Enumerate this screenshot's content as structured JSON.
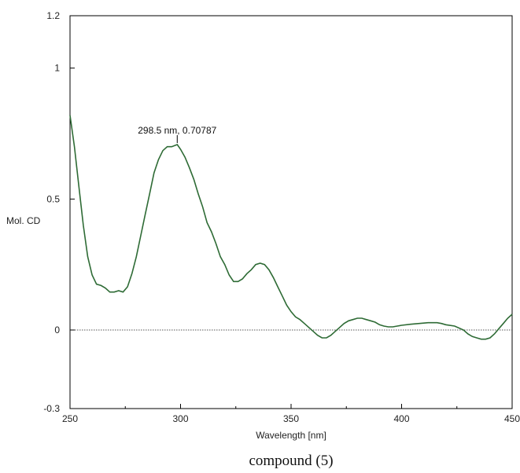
{
  "chart_data": {
    "type": "line",
    "xlabel": "Wavelength [nm]",
    "ylabel": "Mol. CD",
    "caption": "compound (5)",
    "xlim": [
      250,
      450
    ],
    "ylim": [
      -0.3,
      1.2
    ],
    "x_ticks": [
      250,
      300,
      350,
      400,
      450
    ],
    "x_tick_labels": [
      "250",
      "300",
      "350",
      "400",
      "450"
    ],
    "y_ticks": [
      -0.3,
      0,
      0.5,
      1,
      1.2
    ],
    "y_tick_labels": [
      "-0.3",
      "0",
      "0.5",
      "1",
      "1.2"
    ],
    "zero_line": true,
    "grid": false,
    "line_color": "#2e6b35",
    "annotation": {
      "x": 298.5,
      "y": 0.70787,
      "text": "298.5 nm, 0.70787"
    },
    "series": [
      {
        "x": [
          250,
          252,
          254,
          256,
          258,
          260,
          262,
          264,
          266,
          268,
          270,
          272,
          274,
          276,
          278,
          280,
          282,
          284,
          286,
          288,
          290,
          292,
          294,
          296,
          298.5,
          300,
          302,
          304,
          306,
          308,
          310,
          312,
          314,
          316,
          318,
          320,
          322,
          324,
          326,
          328,
          330,
          332,
          334,
          336,
          338,
          340,
          342,
          344,
          346,
          348,
          350,
          352,
          354,
          356,
          358,
          360,
          362,
          364,
          366,
          368,
          370,
          372,
          374,
          376,
          378,
          380,
          382,
          384,
          386,
          388,
          390,
          392,
          394,
          396,
          398,
          400,
          404,
          408,
          412,
          416,
          418,
          420,
          424,
          428,
          430,
          432,
          434,
          436,
          438,
          440,
          442,
          444,
          446,
          448,
          450
        ],
        "values": [
          0.82,
          0.7,
          0.55,
          0.4,
          0.28,
          0.21,
          0.175,
          0.17,
          0.16,
          0.145,
          0.145,
          0.15,
          0.145,
          0.165,
          0.215,
          0.28,
          0.36,
          0.44,
          0.52,
          0.6,
          0.65,
          0.685,
          0.7,
          0.7,
          0.70787,
          0.69,
          0.66,
          0.62,
          0.575,
          0.52,
          0.47,
          0.41,
          0.375,
          0.33,
          0.28,
          0.25,
          0.21,
          0.185,
          0.185,
          0.195,
          0.215,
          0.23,
          0.25,
          0.255,
          0.25,
          0.23,
          0.2,
          0.165,
          0.13,
          0.095,
          0.07,
          0.05,
          0.04,
          0.025,
          0.01,
          -0.005,
          -0.02,
          -0.03,
          -0.03,
          -0.02,
          -0.005,
          0.01,
          0.025,
          0.035,
          0.04,
          0.045,
          0.045,
          0.04,
          0.035,
          0.03,
          0.02,
          0.015,
          0.012,
          0.012,
          0.015,
          0.018,
          0.022,
          0.025,
          0.028,
          0.028,
          0.025,
          0.02,
          0.015,
          0.0,
          -0.015,
          -0.025,
          -0.03,
          -0.035,
          -0.035,
          -0.03,
          -0.015,
          0.005,
          0.025,
          0.045,
          0.06
        ]
      }
    ]
  }
}
